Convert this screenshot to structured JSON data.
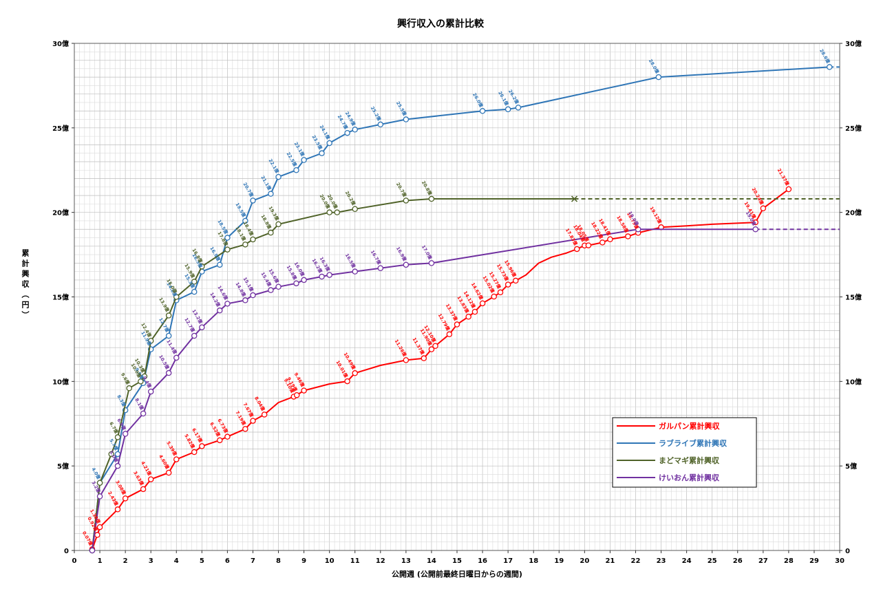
{
  "chart_data": {
    "type": "line",
    "title": "興行収入の累計比較",
    "xlabel": "公開週 (公開前最終日曜日からの週間)",
    "ylabel": "累計興収（円）",
    "xlim": [
      0,
      30
    ],
    "ylim": [
      0,
      30
    ],
    "xticks": [
      0,
      1,
      2,
      3,
      4,
      5,
      6,
      7,
      8,
      9,
      10,
      11,
      12,
      13,
      14,
      15,
      16,
      17,
      18,
      19,
      20,
      21,
      22,
      23,
      24,
      25,
      26,
      27,
      28,
      29,
      30
    ],
    "yticks": [
      0,
      5,
      10,
      15,
      20,
      25,
      30
    ],
    "ytick_labels": [
      "0",
      "5億",
      "10億",
      "15億",
      "20億",
      "25億",
      "30億"
    ],
    "secondary_y_axis": true,
    "grid": true,
    "legend": "lower-right",
    "series": [
      {
        "name": "ガルパン累計興収",
        "color": "#ff0000",
        "points": [
          {
            "x": 0.7,
            "y": 0.07,
            "label": "0.07億"
          },
          {
            "x": 0.9,
            "y": 0.92,
            "label": "0.92億"
          },
          {
            "x": 1.0,
            "y": 1.38,
            "label": "1.38億"
          },
          {
            "x": 1.7,
            "y": 2.43,
            "label": "2.43億"
          },
          {
            "x": 2.0,
            "y": 3.08,
            "label": "3.08億"
          },
          {
            "x": 2.7,
            "y": 3.63,
            "label": "3.63億"
          },
          {
            "x": 3.0,
            "y": 4.21,
            "label": "4.21億"
          },
          {
            "x": 3.7,
            "y": 4.6,
            "label": "4.60億"
          },
          {
            "x": 4.0,
            "y": 5.39,
            "label": "5.39億"
          },
          {
            "x": 4.7,
            "y": 5.82,
            "label": "5.82億"
          },
          {
            "x": 5.0,
            "y": 6.17,
            "label": "6.17億"
          },
          {
            "x": 5.7,
            "y": 6.52,
            "label": "6.52億"
          },
          {
            "x": 6.0,
            "y": 6.73,
            "label": "6.73億"
          },
          {
            "x": 6.7,
            "y": 7.19,
            "label": "7.19億"
          },
          {
            "x": 7.0,
            "y": 7.67,
            "label": "7.67億"
          },
          {
            "x": 7.45,
            "y": 8.04,
            "label": "8.04億"
          },
          {
            "x": 8.0,
            "y": 8.75,
            "marker": false
          },
          {
            "x": 8.6,
            "y": 9.1,
            "label": "9.10億"
          },
          {
            "x": 8.72,
            "y": 9.19,
            "label": "9.19億"
          },
          {
            "x": 9.0,
            "y": 9.46,
            "label": "9.46億"
          },
          {
            "x": 10.0,
            "y": 9.85,
            "marker": false
          },
          {
            "x": 10.7,
            "y": 10.01,
            "label": "10.01億"
          },
          {
            "x": 11.0,
            "y": 10.49,
            "label": "10.49億"
          },
          {
            "x": 12.0,
            "y": 10.95,
            "marker": false
          },
          {
            "x": 13.0,
            "y": 11.26,
            "label": "11.26億"
          },
          {
            "x": 13.7,
            "y": 11.37,
            "label": "11.37億"
          },
          {
            "x": 14.0,
            "y": 11.9,
            "label": "11.90億"
          },
          {
            "x": 14.15,
            "y": 12.1,
            "label": "12.10億"
          },
          {
            "x": 14.7,
            "y": 12.79,
            "label": "12.79億"
          },
          {
            "x": 15.0,
            "y": 13.37,
            "label": "13.37億"
          },
          {
            "x": 15.45,
            "y": 13.83,
            "label": "13.83億"
          },
          {
            "x": 15.7,
            "y": 14.12,
            "label": "14.12億"
          },
          {
            "x": 16.0,
            "y": 14.62,
            "label": "14.62億"
          },
          {
            "x": 16.45,
            "y": 15.02,
            "label": "15.02億"
          },
          {
            "x": 16.7,
            "y": 15.27,
            "label": "15.27億"
          },
          {
            "x": 17.0,
            "y": 15.73,
            "label": "15.73億"
          },
          {
            "x": 17.3,
            "y": 15.96,
            "label": "15.96億"
          },
          {
            "x": 17.7,
            "y": 16.3,
            "marker": false
          },
          {
            "x": 18.2,
            "y": 17.0,
            "marker": false
          },
          {
            "x": 18.7,
            "y": 17.35,
            "marker": false
          },
          {
            "x": 19.3,
            "y": 17.6,
            "marker": false
          },
          {
            "x": 19.7,
            "y": 17.83,
            "label": "17.83億"
          },
          {
            "x": 20.0,
            "y": 18.04,
            "label": "18.04億"
          },
          {
            "x": 20.15,
            "y": 18.05,
            "label": "18.05億"
          },
          {
            "x": 20.7,
            "y": 18.22,
            "label": "18.22億"
          },
          {
            "x": 21.0,
            "y": 18.41,
            "label": "18.41億"
          },
          {
            "x": 21.7,
            "y": 18.58,
            "label": "18.58億"
          },
          {
            "x": 22.1,
            "y": 18.79,
            "label": "18.79億"
          },
          {
            "x": 23.0,
            "y": 19.12,
            "label": "19.12億"
          },
          {
            "x": 24.0,
            "y": 19.2,
            "marker": false
          },
          {
            "x": 25.0,
            "y": 19.3,
            "marker": false
          },
          {
            "x": 26.7,
            "y": 19.41,
            "label": "19.41億"
          },
          {
            "x": 27.0,
            "y": 20.24,
            "label": "20.24億"
          },
          {
            "x": 28.0,
            "y": 21.37,
            "label": "21.37億"
          }
        ]
      },
      {
        "name": "ラブライブ累計興収",
        "color": "#2e75b6",
        "dashed_extension_to": 30,
        "points": [
          {
            "x": 0.7,
            "y": 0
          },
          {
            "x": 1.0,
            "y": 4.0,
            "label": "4.0億"
          },
          {
            "x": 1.7,
            "y": 5.7,
            "label": "5.7億"
          },
          {
            "x": 2.0,
            "y": 8.3,
            "label": "8.3億"
          },
          {
            "x": 2.7,
            "y": 9.9,
            "label": "9.9億"
          },
          {
            "x": 3.0,
            "y": 11.9,
            "label": "11.9億"
          },
          {
            "x": 3.7,
            "y": 12.7,
            "label": "12.7億"
          },
          {
            "x": 4.0,
            "y": 14.8,
            "label": "14.8億"
          },
          {
            "x": 4.7,
            "y": 15.3,
            "label": "15.3億"
          },
          {
            "x": 5.0,
            "y": 16.5,
            "label": "16.5億"
          },
          {
            "x": 5.7,
            "y": 16.9,
            "label": "16.9億"
          },
          {
            "x": 6.0,
            "y": 18.5,
            "label": "18.5億"
          },
          {
            "x": 6.7,
            "y": 19.5,
            "label": "19.5億"
          },
          {
            "x": 7.0,
            "y": 20.7,
            "label": "20.7億"
          },
          {
            "x": 7.7,
            "y": 21.1,
            "label": "21.1億"
          },
          {
            "x": 8.0,
            "y": 22.1,
            "label": "22.1億"
          },
          {
            "x": 8.7,
            "y": 22.5,
            "label": "22.5億"
          },
          {
            "x": 9.0,
            "y": 23.1,
            "label": "23.1億"
          },
          {
            "x": 9.7,
            "y": 23.5,
            "label": "23.5億"
          },
          {
            "x": 10.0,
            "y": 24.1,
            "label": "24.1億"
          },
          {
            "x": 10.7,
            "y": 24.7,
            "label": "24.7億"
          },
          {
            "x": 11.0,
            "y": 24.9,
            "label": "24.9億"
          },
          {
            "x": 12.0,
            "y": 25.2,
            "label": "25.2億"
          },
          {
            "x": 13.0,
            "y": 25.5,
            "label": "25.5億"
          },
          {
            "x": 16.0,
            "y": 26.0,
            "label": "26.0億"
          },
          {
            "x": 17.0,
            "y": 26.1,
            "label": "26.1億"
          },
          {
            "x": 17.4,
            "y": 26.2,
            "label": "26.2億"
          },
          {
            "x": 22.9,
            "y": 28.0,
            "label": "28.0億"
          },
          {
            "x": 29.6,
            "y": 28.6,
            "label": "28.6億"
          }
        ]
      },
      {
        "name": "まどマギ累計興収",
        "color": "#4f6228",
        "dashed_extension_to": 30,
        "points": [
          {
            "x": 0.7,
            "y": 0
          },
          {
            "x": 1.0,
            "y": 4.0
          },
          {
            "x": 1.45,
            "y": 5.7
          },
          {
            "x": 1.7,
            "y": 6.7,
            "label": "6.7億"
          },
          {
            "x": 2.15,
            "y": 9.6,
            "label": "9.6億"
          },
          {
            "x": 2.6,
            "y": 10.0,
            "label": "10.0億"
          },
          {
            "x": 2.75,
            "y": 10.3,
            "label": "10.3億"
          },
          {
            "x": 3.0,
            "y": 12.4,
            "label": "12.4億"
          },
          {
            "x": 3.7,
            "y": 13.9,
            "label": "13.9億"
          },
          {
            "x": 4.0,
            "y": 15.0,
            "label": "15.0億"
          },
          {
            "x": 4.7,
            "y": 15.9,
            "label": "15.9億"
          },
          {
            "x": 5.0,
            "y": 16.8,
            "label": "16.8億"
          },
          {
            "x": 6.0,
            "y": 17.8,
            "label": "17.8億"
          },
          {
            "x": 6.7,
            "y": 18.1,
            "label": "18.1億"
          },
          {
            "x": 7.0,
            "y": 18.4,
            "label": "18.4億"
          },
          {
            "x": 7.7,
            "y": 18.8,
            "label": "18.8億"
          },
          {
            "x": 8.0,
            "y": 19.3,
            "label": "19.3億"
          },
          {
            "x": 10.0,
            "y": 20.0,
            "label": "20.0億"
          },
          {
            "x": 10.3,
            "y": 20.0,
            "label": "20.0億"
          },
          {
            "x": 11.0,
            "y": 20.2,
            "label": "20.2億"
          },
          {
            "x": 13.0,
            "y": 20.7,
            "label": "20.7億"
          },
          {
            "x": 14.0,
            "y": 20.8,
            "label": "20.8億"
          },
          {
            "x": 19.6,
            "y": 20.8,
            "marker": "x"
          }
        ]
      },
      {
        "name": "けいおん累計興収",
        "color": "#7030a0",
        "dashed_extension_to": 30,
        "points": [
          {
            "x": 0.7,
            "y": 0
          },
          {
            "x": 1.0,
            "y": 3.2,
            "label": "3.2億"
          },
          {
            "x": 1.7,
            "y": 5.0,
            "label": "5.0億"
          },
          {
            "x": 2.0,
            "y": 6.9,
            "label": "6.9億"
          },
          {
            "x": 2.7,
            "y": 8.1,
            "label": "8.1億"
          },
          {
            "x": 3.0,
            "y": 9.4,
            "label": "9.4億"
          },
          {
            "x": 3.7,
            "y": 10.5,
            "label": "10.5億"
          },
          {
            "x": 4.0,
            "y": 11.4,
            "label": "11.4億"
          },
          {
            "x": 4.7,
            "y": 12.7,
            "label": "12.7億"
          },
          {
            "x": 5.0,
            "y": 13.2,
            "label": "13.2億"
          },
          {
            "x": 5.7,
            "y": 14.2,
            "label": "14.2億"
          },
          {
            "x": 6.0,
            "y": 14.6,
            "label": "14.6億"
          },
          {
            "x": 6.7,
            "y": 14.8,
            "label": "14.8億"
          },
          {
            "x": 7.0,
            "y": 15.1,
            "label": "15.1億"
          },
          {
            "x": 7.7,
            "y": 15.4,
            "label": "15.4億"
          },
          {
            "x": 8.0,
            "y": 15.6,
            "label": "15.6億"
          },
          {
            "x": 8.7,
            "y": 15.8,
            "label": "15.8億"
          },
          {
            "x": 9.0,
            "y": 16.0,
            "label": "16.0億"
          },
          {
            "x": 9.7,
            "y": 16.2,
            "label": "16.2億"
          },
          {
            "x": 10.0,
            "y": 16.3,
            "label": "16.3億"
          },
          {
            "x": 11.0,
            "y": 16.5,
            "label": "16.5億"
          },
          {
            "x": 12.0,
            "y": 16.7,
            "label": "16.7億"
          },
          {
            "x": 13.0,
            "y": 16.9,
            "label": "16.9億"
          },
          {
            "x": 14.0,
            "y": 17.0,
            "label": "17.0億"
          },
          {
            "x": 22.1,
            "y": 19.0,
            "label": "19.0億"
          },
          {
            "x": 26.7,
            "y": 19.0,
            "label": "19.0億"
          }
        ]
      }
    ]
  }
}
